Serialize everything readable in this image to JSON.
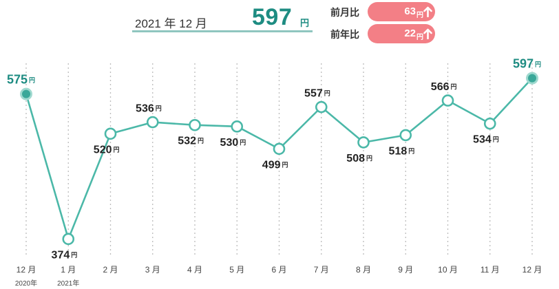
{
  "header": {
    "period": "2021 年 12 月",
    "price": "597",
    "price_unit": "円"
  },
  "comparisons": [
    {
      "label": "前月比",
      "value": "63",
      "unit": "円",
      "direction": "up",
      "icon": "arrow-up-icon"
    },
    {
      "label": "前年比",
      "value": "22",
      "unit": "円",
      "direction": "up",
      "icon": "arrow-up-icon"
    }
  ],
  "colors": {
    "accent": "#1e8c82",
    "line": "#4bb8a8",
    "badge": "#f37f86"
  },
  "chart_data": {
    "type": "line",
    "categories": [
      "12 月",
      "1 月",
      "2 月",
      "3 月",
      "4 月",
      "5 月",
      "6 月",
      "7 月",
      "8 月",
      "9 月",
      "10 月",
      "11 月",
      "12 月"
    ],
    "category_years": [
      "2020年",
      "2021年",
      "",
      "",
      "",
      "",
      "",
      "",
      "",
      "",
      "",
      "",
      ""
    ],
    "series": [
      {
        "values": [
          575,
          374,
          520,
          536,
          532,
          530,
          499,
          557,
          508,
          518,
          566,
          534,
          597
        ]
      }
    ],
    "label_positions": [
      "above",
      "below",
      "below",
      "above",
      "below",
      "below",
      "below",
      "above",
      "below",
      "below",
      "above",
      "below",
      "above"
    ],
    "highlight": [
      true,
      false,
      false,
      false,
      false,
      false,
      false,
      false,
      false,
      false,
      false,
      false,
      true
    ],
    "unit": "円",
    "ylim": [
      360,
      610
    ],
    "grid": "vertical dotted"
  }
}
